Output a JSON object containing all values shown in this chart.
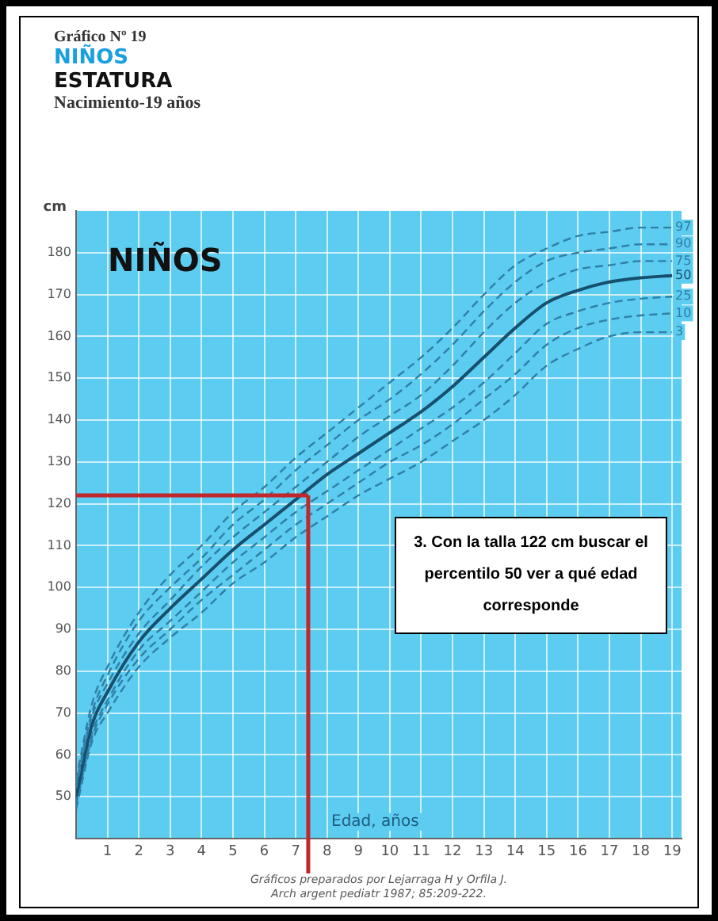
{
  "chart_data": {
    "type": "line",
    "title": "Gráfico Nº 19",
    "subtitle": "NIÑOS",
    "xlabel": "Edad, años",
    "ylabel": "cm",
    "annotations": [
      "ESTATURA",
      "Nacimiento-19 años",
      "NIÑOS",
      "3. Con la talla 122 cm buscar el percentilo 50 ver a qué edad corresponde",
      "Gráficos preparados por Lejarraga H y Orfila J.",
      "Arch argent pediatr 1987; 85:209-222."
    ],
    "x": [
      0,
      0.5,
      1,
      2,
      3,
      4,
      5,
      6,
      7,
      8,
      9,
      10,
      11,
      12,
      13,
      14,
      15,
      16,
      17,
      18,
      19
    ],
    "series": [
      {
        "name": "97",
        "color": "#2f7fa6",
        "line_style": "dashed",
        "values": [
          54,
          72,
          81,
          94,
          103,
          110,
          118,
          124,
          131,
          137,
          143,
          149,
          155,
          162,
          170,
          177,
          181,
          184,
          185,
          186,
          186
        ]
      },
      {
        "name": "90",
        "color": "#2f7fa6",
        "line_style": "dashed",
        "values": [
          53,
          70,
          79,
          92,
          100,
          107,
          115,
          121,
          128,
          134,
          140,
          145,
          151,
          158,
          166,
          173,
          178,
          180,
          181,
          182,
          182
        ]
      },
      {
        "name": "75",
        "color": "#2f7fa6",
        "line_style": "dashed",
        "values": [
          52,
          69,
          77,
          89,
          97,
          105,
          112,
          118,
          124,
          130,
          136,
          141,
          146,
          153,
          161,
          168,
          173,
          176,
          177,
          178,
          178
        ]
      },
      {
        "name": "50",
        "color": "#174f6e",
        "line_style": "solid",
        "values": [
          50,
          67,
          75,
          87,
          95,
          102,
          109,
          115,
          121,
          127,
          132,
          137,
          142,
          148,
          155,
          162,
          168,
          171,
          173,
          174,
          174.5
        ]
      },
      {
        "name": "25",
        "color": "#2f7fa6",
        "line_style": "dashed",
        "values": [
          49,
          65,
          73,
          85,
          92,
          99,
          106,
          112,
          118,
          123,
          128,
          133,
          138,
          143,
          149,
          156,
          163,
          166,
          168,
          169,
          169.5
        ]
      },
      {
        "name": "10",
        "color": "#2f7fa6",
        "line_style": "dashed",
        "values": [
          48,
          64,
          72,
          83,
          90,
          97,
          103,
          109,
          115,
          120,
          125,
          130,
          134,
          139,
          145,
          151,
          158,
          162,
          164,
          165,
          165.5
        ]
      },
      {
        "name": "3",
        "color": "#2f7fa6",
        "line_style": "dashed",
        "values": [
          47,
          63,
          70,
          81,
          88,
          94,
          101,
          106,
          112,
          117,
          122,
          126,
          130,
          135,
          140,
          146,
          153,
          157,
          160,
          161,
          161
        ]
      }
    ],
    "xlim": [
      0,
      19.3
    ],
    "xticks": [
      1,
      2,
      3,
      4,
      5,
      6,
      7,
      8,
      9,
      10,
      11,
      12,
      13,
      14,
      15,
      16,
      17,
      18,
      19
    ],
    "ylim": [
      40,
      190
    ],
    "yticks": [
      50,
      60,
      70,
      80,
      90,
      100,
      110,
      120,
      130,
      140,
      150,
      160,
      170,
      180
    ],
    "ref_lines": [
      {
        "axis": "y",
        "value": 122,
        "color": "#c0282d"
      },
      {
        "axis": "x",
        "value": 7.4,
        "color": "#c0282d"
      }
    ],
    "grid": true,
    "legend": false,
    "marker": "none"
  }
}
